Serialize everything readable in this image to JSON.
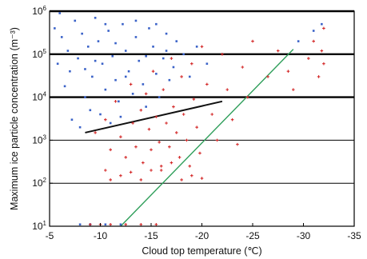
{
  "chart_data": {
    "type": "scatter",
    "title": "",
    "xlabel": "Cloud top temperature (℃)",
    "ylabel": "Maximum ice particle concentration (m⁻³)",
    "x_ticks": [
      -5,
      -10,
      -15,
      -20,
      -25,
      -30,
      -35
    ],
    "x_tick_labels": [
      "-5",
      "-10",
      "-15",
      "-20",
      "-25",
      "-30",
      "-35"
    ],
    "y_tick_exponents": [
      1,
      2,
      3,
      4,
      5,
      6
    ],
    "y_tick_base": "10",
    "xlim": [
      -5,
      -35
    ],
    "ylim": [
      10,
      1000000
    ],
    "yscale": "log",
    "grid": "horizontal lines at each decade; bold at 10^4, 10^5, 10^6",
    "legend": "none",
    "series": [
      {
        "color": "#3a62c8",
        "marker": "small square",
        "points": [
          [
            -5.5,
            400000
          ],
          [
            -6.2,
            250000
          ],
          [
            -6.8,
            120000
          ],
          [
            -7.5,
            600000
          ],
          [
            -7.8,
            80000
          ],
          [
            -8.2,
            300000
          ],
          [
            -8.5,
            45000
          ],
          [
            -8.8,
            150000
          ],
          [
            -9.2,
            30000
          ],
          [
            -9.5,
            700000
          ],
          [
            -9.8,
            200000
          ],
          [
            -10.2,
            60000
          ],
          [
            -10.5,
            15000
          ],
          [
            -10.8,
            350000
          ],
          [
            -11.2,
            90000
          ],
          [
            -11.5,
            25000
          ],
          [
            -11.8,
            8000
          ],
          [
            -12.2,
            500000
          ],
          [
            -12.5,
            120000
          ],
          [
            -12.8,
            40000
          ],
          [
            -13.2,
            12000
          ],
          [
            -13.5,
            250000
          ],
          [
            -13.8,
            70000
          ],
          [
            -14.2,
            20000
          ],
          [
            -14.5,
            6000
          ],
          [
            -14.8,
            400000
          ],
          [
            -15.2,
            150000
          ],
          [
            -15.5,
            35000
          ],
          [
            -15.8,
            10000
          ],
          [
            -16.2,
            80000
          ],
          [
            -16.5,
            300000
          ],
          [
            -16.8,
            25000
          ],
          [
            -17.2,
            50000
          ],
          [
            -17.5,
            200000
          ],
          [
            -18.2,
            100000
          ],
          [
            -18.8,
            30000
          ],
          [
            -19.5,
            150000
          ],
          [
            -20.5,
            60000
          ],
          [
            -7.2,
            3000
          ],
          [
            -8.0,
            2000
          ],
          [
            -9.0,
            5000
          ],
          [
            -10.0,
            4000
          ],
          [
            -11.0,
            2500
          ],
          [
            -12.0,
            3500
          ],
          [
            -6.5,
            18000
          ],
          [
            -7.0,
            40000
          ],
          [
            -8.5,
            10000
          ],
          [
            -9.5,
            70000
          ],
          [
            -10.5,
            500000
          ],
          [
            -11.5,
            180000
          ],
          [
            -12.5,
            30000
          ],
          [
            -13.5,
            600000
          ],
          [
            -14.5,
            90000
          ],
          [
            -15.5,
            500000
          ],
          [
            -16.5,
            120000
          ],
          [
            -5.8,
            60000
          ],
          [
            -6.0,
            900000
          ],
          [
            -29.5,
            200000
          ],
          [
            -31.0,
            350000
          ],
          [
            -31.8,
            500000
          ],
          [
            -8.0,
            11
          ],
          [
            -9.0,
            11
          ],
          [
            -10.5,
            11
          ],
          [
            -12.0,
            11
          ]
        ]
      },
      {
        "color": "#d42a2a",
        "marker": "small plus",
        "points": [
          [
            -9.5,
            1500
          ],
          [
            -10.5,
            3000
          ],
          [
            -11.0,
            600
          ],
          [
            -11.5,
            8000
          ],
          [
            -12.0,
            1200
          ],
          [
            -12.5,
            400
          ],
          [
            -13.0,
            20000
          ],
          [
            -13.2,
            2500
          ],
          [
            -13.5,
            700
          ],
          [
            -14.0,
            5000
          ],
          [
            -14.2,
            300
          ],
          [
            -14.5,
            12000
          ],
          [
            -14.8,
            1800
          ],
          [
            -15.0,
            600
          ],
          [
            -15.2,
            40000
          ],
          [
            -15.5,
            3500
          ],
          [
            -15.8,
            900
          ],
          [
            -16.0,
            200
          ],
          [
            -16.2,
            15000
          ],
          [
            -16.5,
            2500
          ],
          [
            -16.8,
            700
          ],
          [
            -17.0,
            80000
          ],
          [
            -17.2,
            6000
          ],
          [
            -17.5,
            1500
          ],
          [
            -17.8,
            400
          ],
          [
            -18.0,
            30000
          ],
          [
            -18.2,
            4000
          ],
          [
            -18.5,
            1000
          ],
          [
            -18.8,
            250
          ],
          [
            -19.0,
            60000
          ],
          [
            -19.2,
            9000
          ],
          [
            -19.5,
            2000
          ],
          [
            -19.8,
            500
          ],
          [
            -20.0,
            150000
          ],
          [
            -20.5,
            20000
          ],
          [
            -21.0,
            4000
          ],
          [
            -21.5,
            1000
          ],
          [
            -22.0,
            100000
          ],
          [
            -22.5,
            15000
          ],
          [
            -23.0,
            3000
          ],
          [
            -23.5,
            800
          ],
          [
            -24.0,
            50000
          ],
          [
            -24.5,
            10000
          ],
          [
            -12.0,
            150
          ],
          [
            -13.0,
            180
          ],
          [
            -14.0,
            120
          ],
          [
            -15.0,
            200
          ],
          [
            -16.0,
            250
          ],
          [
            -18.0,
            120
          ],
          [
            -20.0,
            130
          ],
          [
            -11.0,
            120
          ],
          [
            -10.5,
            200
          ],
          [
            -17.0,
            300
          ],
          [
            -19.0,
            150
          ],
          [
            -27.5,
            120000
          ],
          [
            -28.5,
            40000
          ],
          [
            -29.0,
            15000
          ],
          [
            -30.5,
            80000
          ],
          [
            -31.0,
            200000
          ],
          [
            -31.5,
            30000
          ],
          [
            -31.8,
            120000
          ],
          [
            -32.0,
            60000
          ],
          [
            -32.0,
            400000
          ],
          [
            -26.5,
            30000
          ],
          [
            -25.0,
            200000
          ],
          [
            -10.0,
            11
          ],
          [
            -11.0,
            11
          ],
          [
            -12.5,
            11
          ],
          [
            -14.0,
            11
          ],
          [
            -15.5,
            11
          ],
          [
            -9.0,
            11
          ]
        ]
      }
    ],
    "annotation_lines": [
      {
        "color": "#111111",
        "points": [
          [
            -8.5,
            1500
          ],
          [
            -22,
            8000
          ]
        ]
      },
      {
        "color": "#2e9e5a",
        "points": [
          [
            -12,
            10
          ],
          [
            -29,
            130000
          ]
        ]
      }
    ]
  }
}
